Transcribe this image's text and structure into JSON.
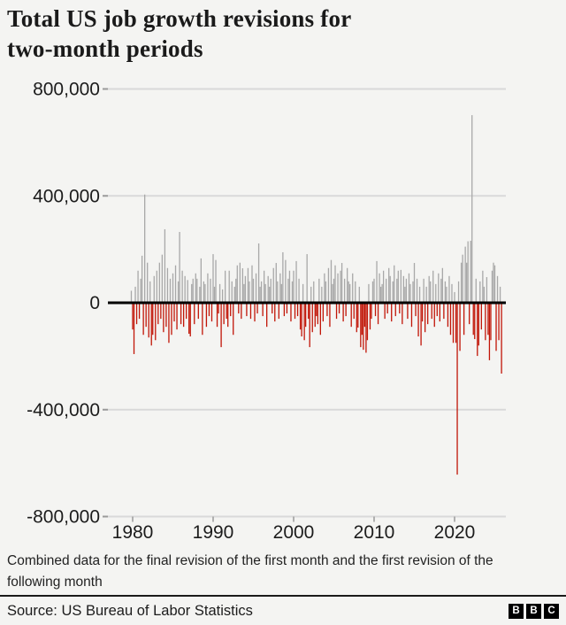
{
  "header": {
    "title": "Total US job growth revisions for two-month periods"
  },
  "chart_data": {
    "type": "bar",
    "title": "Total US job growth revisions for two-month periods",
    "xlabel": "",
    "ylabel": "",
    "x_start": 1979.8333,
    "x_step": 0.16667,
    "values_thousands": [
      45,
      -100,
      -192,
      60,
      -80,
      120,
      -60,
      90,
      176,
      -120,
      405,
      -90,
      150,
      -130,
      80,
      -160,
      -120,
      100,
      -140,
      120,
      -80,
      150,
      -60,
      180,
      -110,
      275,
      -90,
      130,
      -150,
      90,
      -120,
      110,
      -70,
      140,
      -100,
      80,
      265,
      -80,
      120,
      -90,
      100,
      -60,
      85,
      -116,
      -126,
      70,
      90,
      -80,
      110,
      90,
      -60,
      60,
      166,
      -120,
      80,
      70,
      -90,
      110,
      -50,
      90,
      -70,
      182,
      60,
      160,
      -90,
      -40,
      70,
      -166,
      50,
      -80,
      120,
      -60,
      -90,
      120,
      -50,
      80,
      -120,
      60,
      90,
      140,
      -40,
      150,
      -60,
      129,
      70,
      100,
      -50,
      130,
      80,
      -60,
      140,
      90,
      -70,
      110,
      -40,
      222,
      60,
      80,
      -50,
      120,
      70,
      -90,
      100,
      60,
      90,
      -40,
      130,
      -70,
      149,
      80,
      -60,
      110,
      70,
      189,
      -50,
      160,
      -40,
      90,
      120,
      -70,
      80,
      120,
      -60,
      156,
      -50,
      90,
      -100,
      -126,
      70,
      -140,
      -90,
      182,
      -60,
      -166,
      60,
      -110,
      80,
      -90,
      -50,
      -80,
      90,
      -120,
      60,
      -70,
      110,
      80,
      -50,
      130,
      -90,
      160,
      70,
      90,
      140,
      -60,
      110,
      -40,
      120,
      149,
      -70,
      90,
      -50,
      130,
      80,
      70,
      -90,
      110,
      -60,
      80,
      -110,
      -93,
      60,
      -166,
      -120,
      -176,
      -90,
      -187,
      -140,
      70,
      -100,
      -60,
      80,
      90,
      -50,
      156,
      -80,
      110,
      60,
      70,
      120,
      -60,
      90,
      -40,
      130,
      100,
      -70,
      80,
      140,
      -50,
      90,
      120,
      -40,
      123,
      -80,
      100,
      60,
      90,
      -60,
      110,
      70,
      -90,
      80,
      149,
      -50,
      90,
      -126,
      60,
      -160,
      -70,
      90,
      -110,
      60,
      -80,
      100,
      80,
      -60,
      120,
      -90,
      70,
      -50,
      110,
      -70,
      90,
      130,
      -60,
      80,
      60,
      -90,
      100,
      -120,
      70,
      -150,
      40,
      -150,
      -643,
      80,
      -180,
      150,
      180,
      -120,
      210,
      150,
      230,
      -80,
      232,
      702,
      -120,
      -136,
      90,
      -199,
      -160,
      80,
      -100,
      120,
      60,
      -140,
      96,
      -120,
      -215,
      -140,
      120,
      150,
      140,
      -180,
      100,
      -140,
      60,
      -265
    ],
    "xticks": [
      1980,
      1990,
      2000,
      2010,
      2020
    ],
    "xtick_labels": [
      "1980",
      "1990",
      "2000",
      "2010",
      "2020"
    ],
    "yticks": [
      800000,
      400000,
      0,
      -400000,
      -800000
    ],
    "ytick_labels": [
      "800,000",
      "400,000",
      "0",
      "-400,000",
      "-800,000"
    ],
    "ylim": [
      -800000,
      800000
    ],
    "xlim": [
      1978.9,
      2026.4
    ],
    "grid": true,
    "legend": false,
    "colors": {
      "positive": "#a8a8a8",
      "negative": "#c11507",
      "zero_line": "#000000",
      "gridline": "#d9d9d9",
      "axis_tick": "#9a9a9a",
      "text": "#1c1c1c"
    }
  },
  "footer": {
    "note": "Combined data for the final revision of the first month and the first revision of the following month",
    "source": "Source: US Bureau of Labor Statistics",
    "logo_letters": [
      "B",
      "B",
      "C"
    ]
  }
}
